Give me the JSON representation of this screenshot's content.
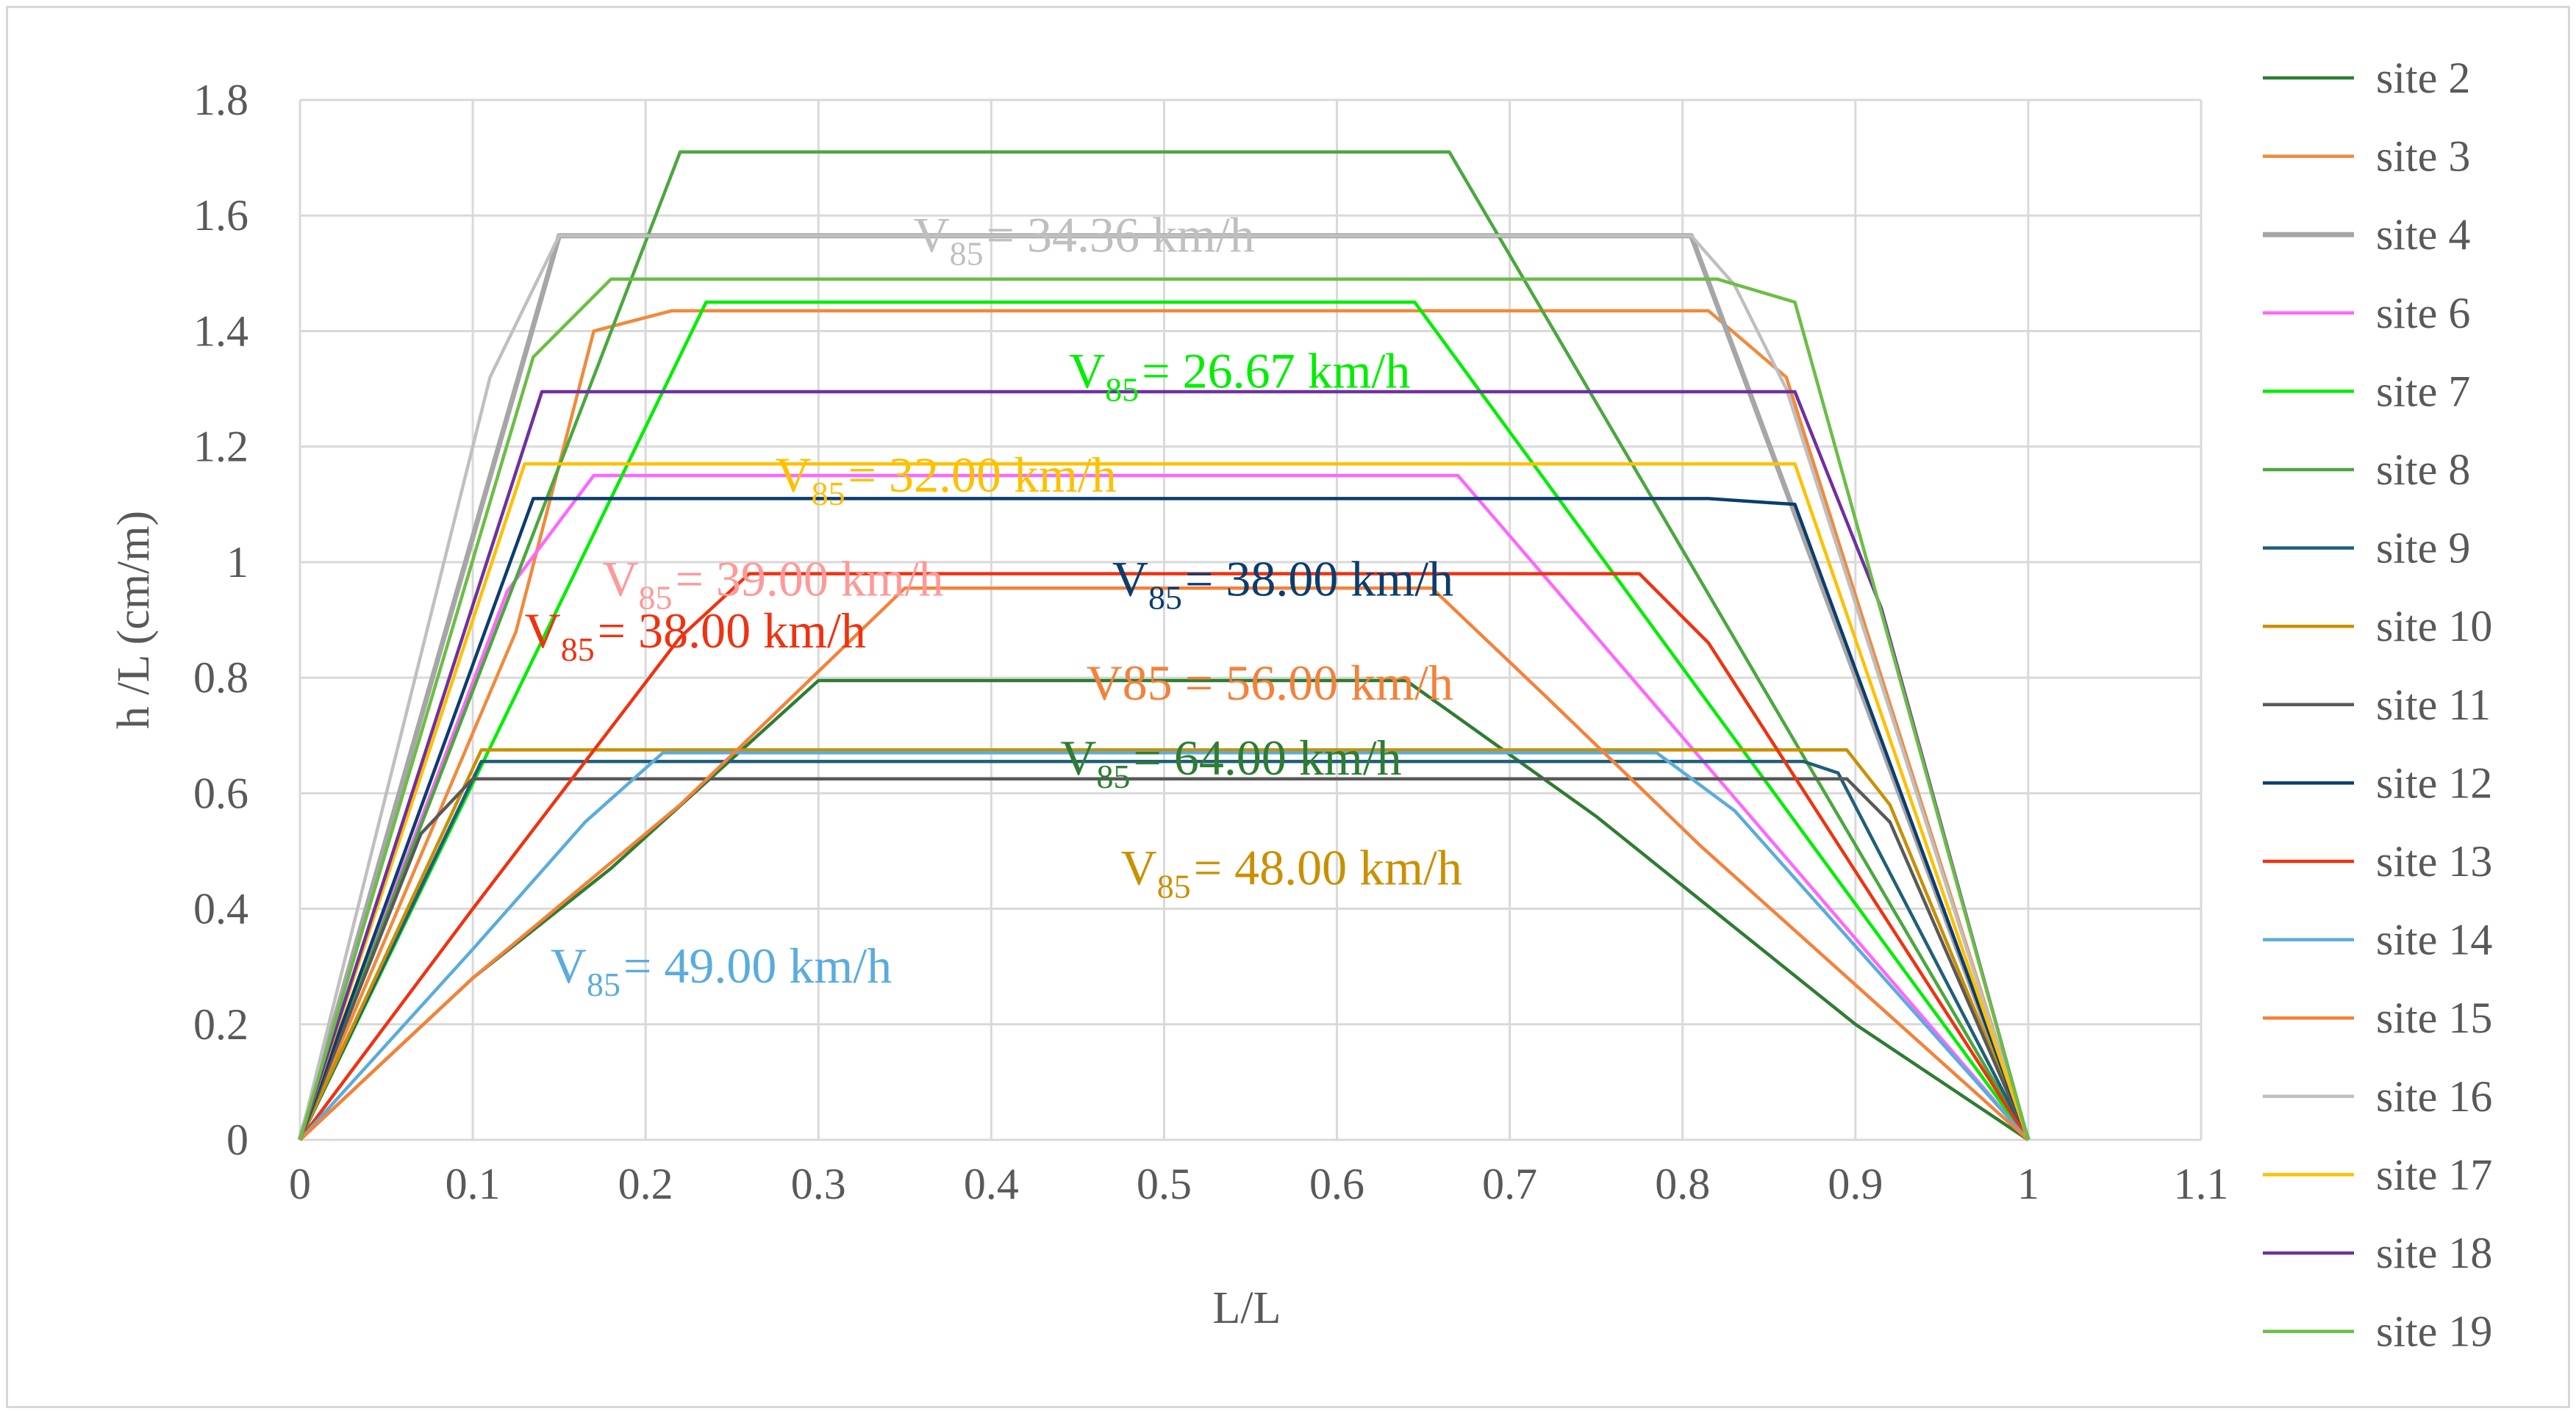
{
  "chart_data": {
    "type": "line",
    "title": "",
    "xlabel": "L/L",
    "ylabel": "h /L (cm/m)",
    "xlim": [
      0,
      1.1
    ],
    "ylim": [
      0,
      1.8
    ],
    "x_ticks": [
      "0",
      "0.1",
      "0.2",
      "0.3",
      "0.4",
      "0.5",
      "0.6",
      "0.7",
      "0.8",
      "0.9",
      "1",
      "1.1"
    ],
    "y_ticks": [
      "0",
      "0.2",
      "0.4",
      "0.6",
      "0.8",
      "1",
      "1.2",
      "1.4",
      "1.6",
      "1.8"
    ],
    "grid": true,
    "legend_position": "right",
    "series": [
      {
        "name": "site 2",
        "color": "#2e7d32",
        "points": [
          [
            0,
            0
          ],
          [
            0.1,
            0.28
          ],
          [
            0.18,
            0.47
          ],
          [
            0.3,
            0.795
          ],
          [
            0.64,
            0.795
          ],
          [
            0.75,
            0.56
          ],
          [
            0.9,
            0.2
          ],
          [
            1,
            0
          ]
        ]
      },
      {
        "name": "site 3",
        "color": "#f08a3c",
        "points": [
          [
            0,
            0
          ],
          [
            0.125,
            0.88
          ],
          [
            0.17,
            1.4
          ],
          [
            0.215,
            1.435
          ],
          [
            0.815,
            1.435
          ],
          [
            0.86,
            1.32
          ],
          [
            1,
            0
          ]
        ]
      },
      {
        "name": "site 4",
        "color": "#a6a6a6",
        "width": 7,
        "points": [
          [
            0,
            0
          ],
          [
            0.15,
            1.565
          ],
          [
            0.805,
            1.565
          ],
          [
            1,
            0
          ]
        ]
      },
      {
        "name": "site 6",
        "color": "#ff66ff",
        "points": [
          [
            0,
            0
          ],
          [
            0.12,
            0.95
          ],
          [
            0.17,
            1.15
          ],
          [
            0.67,
            1.15
          ],
          [
            1,
            0
          ]
        ]
      },
      {
        "name": "site 7",
        "color": "#00ee00",
        "points": [
          [
            0,
            0
          ],
          [
            0.235,
            1.45
          ],
          [
            0.645,
            1.45
          ],
          [
            1,
            0
          ]
        ]
      },
      {
        "name": "site 8",
        "color": "#4aa83e",
        "points": [
          [
            0,
            0
          ],
          [
            0.22,
            1.71
          ],
          [
            0.665,
            1.71
          ],
          [
            1,
            0
          ]
        ]
      },
      {
        "name": "site 9",
        "color": "#1f5f7a",
        "points": [
          [
            0,
            0
          ],
          [
            0.105,
            0.655
          ],
          [
            0.87,
            0.655
          ],
          [
            0.89,
            0.635
          ],
          [
            1,
            0
          ]
        ]
      },
      {
        "name": "site 10",
        "color": "#c99000",
        "points": [
          [
            0,
            0
          ],
          [
            0.105,
            0.675
          ],
          [
            0.895,
            0.675
          ],
          [
            0.92,
            0.58
          ],
          [
            1,
            0
          ]
        ]
      },
      {
        "name": "site 11",
        "color": "#595959",
        "points": [
          [
            0,
            0
          ],
          [
            0.07,
            0.53
          ],
          [
            0.1,
            0.625
          ],
          [
            0.895,
            0.625
          ],
          [
            0.92,
            0.55
          ],
          [
            1,
            0
          ]
        ]
      },
      {
        "name": "site 12",
        "color": "#0b3d6e",
        "points": [
          [
            0,
            0
          ],
          [
            0.135,
            1.11
          ],
          [
            0.815,
            1.11
          ],
          [
            0.865,
            1.1
          ],
          [
            1,
            0
          ]
        ]
      },
      {
        "name": "site 13",
        "color": "#ee3311",
        "points": [
          [
            0,
            0
          ],
          [
            0.1,
            0.4
          ],
          [
            0.22,
            0.87
          ],
          [
            0.26,
            0.98
          ],
          [
            0.775,
            0.98
          ],
          [
            0.815,
            0.86
          ],
          [
            1,
            0
          ]
        ]
      },
      {
        "name": "site 14",
        "color": "#5aacdc",
        "points": [
          [
            0,
            0
          ],
          [
            0.1,
            0.33
          ],
          [
            0.165,
            0.55
          ],
          [
            0.21,
            0.67
          ],
          [
            0.785,
            0.67
          ],
          [
            0.83,
            0.57
          ],
          [
            1,
            0
          ]
        ]
      },
      {
        "name": "site 15",
        "color": "#f5813a",
        "points": [
          [
            0,
            0
          ],
          [
            0.1,
            0.28
          ],
          [
            0.22,
            0.58
          ],
          [
            0.35,
            0.955
          ],
          [
            0.655,
            0.955
          ],
          [
            0.72,
            0.77
          ],
          [
            0.81,
            0.51
          ],
          [
            1,
            0
          ]
        ]
      },
      {
        "name": "site 16",
        "color": "#bfbfbf",
        "points": [
          [
            0,
            0
          ],
          [
            0.11,
            1.32
          ],
          [
            0.15,
            1.565
          ],
          [
            0.805,
            1.565
          ],
          [
            0.83,
            1.48
          ],
          [
            0.86,
            1.3
          ],
          [
            1,
            0
          ]
        ]
      },
      {
        "name": "site 17",
        "color": "#ffc000",
        "points": [
          [
            0,
            0
          ],
          [
            0.13,
            1.17
          ],
          [
            0.17,
            1.17
          ],
          [
            0.865,
            1.17
          ],
          [
            1,
            0
          ]
        ]
      },
      {
        "name": "site 18",
        "color": "#7030a0",
        "points": [
          [
            0,
            0
          ],
          [
            0.14,
            1.295
          ],
          [
            0.865,
            1.295
          ],
          [
            0.915,
            0.92
          ],
          [
            1,
            0
          ]
        ]
      },
      {
        "name": "site 19",
        "color": "#6abe45",
        "points": [
          [
            0,
            0
          ],
          [
            0.135,
            1.355
          ],
          [
            0.18,
            1.49
          ],
          [
            0.82,
            1.49
          ],
          [
            0.865,
            1.45
          ],
          [
            1,
            0
          ]
        ]
      }
    ],
    "annotations": [
      {
        "label": "V",
        "sub": "85",
        "rest": "= 34.36 km/h",
        "color": "#bfbfbf",
        "x": 0.355,
        "y": 1.565
      },
      {
        "label": "V",
        "sub": "85",
        "rest": "= 26.67 km/h",
        "color": "#00ee00",
        "x": 0.445,
        "y": 1.33
      },
      {
        "label": "V",
        "sub": "85",
        "rest": "= 32.00 km/h",
        "color": "#ffc000",
        "x": 0.275,
        "y": 1.15
      },
      {
        "label": "V",
        "sub": "85",
        "rest": "= 39.00 km/h",
        "color": "#ff9999",
        "x": 0.175,
        "y": 0.97
      },
      {
        "label": "V",
        "sub": "85",
        "rest": "= 38.00 km/h",
        "color": "#0b3d6e",
        "x": 0.47,
        "y": 0.97
      },
      {
        "label": "V",
        "sub": "85",
        "rest": "= 38.00 km/h",
        "color": "#ee3311",
        "x": 0.13,
        "y": 0.88
      },
      {
        "label": "V85 = 56.00 km/h",
        "sub": "",
        "rest": "",
        "color": "#f5813a",
        "x": 0.455,
        "y": 0.79
      },
      {
        "label": "V",
        "sub": "85",
        "rest": "= 64.00 km/h",
        "color": "#2e7d32",
        "x": 0.44,
        "y": 0.66
      },
      {
        "label": "V",
        "sub": "85",
        "rest": "= 48.00 km/h",
        "color": "#c99000",
        "x": 0.475,
        "y": 0.47
      },
      {
        "label": "V",
        "sub": "85",
        "rest": "= 49.00 km/h",
        "color": "#5aacdc",
        "x": 0.145,
        "y": 0.3
      }
    ]
  }
}
